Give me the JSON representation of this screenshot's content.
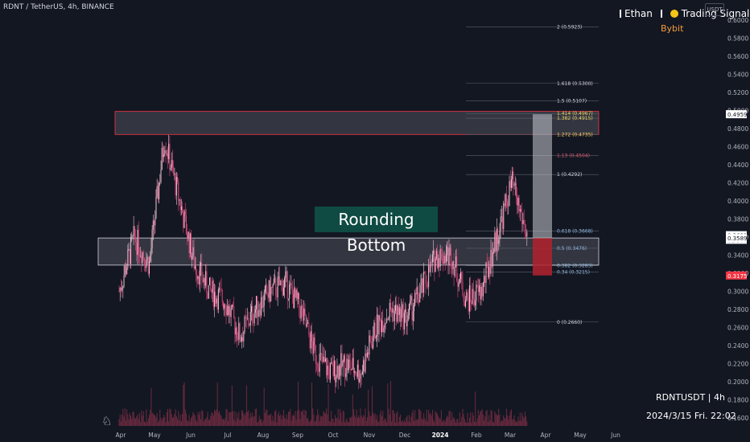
{
  "header": {
    "symbol_line": "RDNT / TetherUS, 4h, BINANCE",
    "brand_left": "Ethan",
    "brand_right": "Trading Signals",
    "exchange": "Bybit",
    "scale_button": "USDT"
  },
  "watermark": {
    "symbol": "RDNTUSDT | 4h",
    "datetime": "2024/3/15 Fri. 22:02"
  },
  "colors": {
    "background": "#131722",
    "candle_up": "#f0c4d4",
    "candle_down": "#e0457b",
    "volume": "#6b2a3f",
    "zone_border_red": "#f23645",
    "zone_border_white": "#d1d4dc",
    "target_box": "#c7c9cf",
    "stop_box": "#b2222e",
    "label_bg": "#0f4b43",
    "current_price": "#ffffff",
    "stop_price": "#f23645"
  },
  "chart_data": {
    "type": "candlestick",
    "title": "RDNT / TetherUS, 4h, BINANCE",
    "pattern_label": "Rounding Bottom",
    "x_axis": {
      "ticks": [
        "Apr",
        "May",
        "Jun",
        "Jul",
        "Aug",
        "Sep",
        "Oct",
        "Nov",
        "Dec",
        "2024",
        "Feb",
        "Mar",
        "Apr",
        "May",
        "Jun"
      ]
    },
    "y_axis": {
      "unit": "USDT",
      "range": [
        0.15,
        0.61
      ],
      "ticks": [
        "0.6000",
        "0.5800",
        "0.5600",
        "0.5400",
        "0.5200",
        "0.5000",
        "0.4800",
        "0.4600",
        "0.4400",
        "0.4200",
        "0.4000",
        "0.3800",
        "0.3600",
        "0.3400",
        "0.3200",
        "0.3000",
        "0.2800",
        "0.2600",
        "0.2400",
        "0.2200",
        "0.2000",
        "0.1800",
        "0.1600"
      ]
    },
    "price_path": [
      {
        "month": "Apr",
        "price": 0.3
      },
      {
        "month": "Apr",
        "price": 0.36
      },
      {
        "month": "Apr",
        "price": 0.33
      },
      {
        "month": "Apr",
        "price": 0.47
      },
      {
        "month": "May",
        "price": 0.4
      },
      {
        "month": "May",
        "price": 0.33
      },
      {
        "month": "May",
        "price": 0.3
      },
      {
        "month": "Jun",
        "price": 0.29
      },
      {
        "month": "Jun",
        "price": 0.25
      },
      {
        "month": "Jul",
        "price": 0.28
      },
      {
        "month": "Jul",
        "price": 0.3
      },
      {
        "month": "Aug",
        "price": 0.31
      },
      {
        "month": "Aug",
        "price": 0.28
      },
      {
        "month": "Sep",
        "price": 0.23
      },
      {
        "month": "Sep",
        "price": 0.21
      },
      {
        "month": "Oct",
        "price": 0.22
      },
      {
        "month": "Oct",
        "price": 0.21
      },
      {
        "month": "Nov",
        "price": 0.26
      },
      {
        "month": "Nov",
        "price": 0.28
      },
      {
        "month": "Dec",
        "price": 0.27
      },
      {
        "month": "Dec",
        "price": 0.3
      },
      {
        "month": "2024",
        "price": 0.34
      },
      {
        "month": "2024",
        "price": 0.34
      },
      {
        "month": "Feb",
        "price": 0.29
      },
      {
        "month": "Feb",
        "price": 0.3
      },
      {
        "month": "Mar",
        "price": 0.36
      },
      {
        "month": "Mar",
        "price": 0.42
      },
      {
        "month": "Mar",
        "price": 0.362
      }
    ],
    "fib_levels": [
      {
        "label": "2 (0.5923)",
        "value": 0.5923
      },
      {
        "label": "1.618 (0.5300)",
        "value": 0.53
      },
      {
        "label": "1.5 (0.5107)",
        "value": 0.5107
      },
      {
        "label": "1.414 (0.4967)",
        "value": 0.4967
      },
      {
        "label": "1.382 (0.4915)",
        "value": 0.4915
      },
      {
        "label": "1.272 (0.4735)",
        "value": 0.4735
      },
      {
        "label": "1.13 (0.4504)",
        "value": 0.4504
      },
      {
        "label": "1 (0.4292)",
        "value": 0.4292
      },
      {
        "label": "0.618 (0.3668)",
        "value": 0.3668
      },
      {
        "label": "0.5 (0.3476)",
        "value": 0.3476
      },
      {
        "label": "0.382 (0.3283)",
        "value": 0.3283
      },
      {
        "label": "0.34 (0.3215)",
        "value": 0.3215
      },
      {
        "label": "0 (0.2660)",
        "value": 0.266
      }
    ],
    "zones": [
      {
        "name": "resistance",
        "low": 0.4735,
        "high": 0.499
      },
      {
        "name": "support",
        "low": 0.329,
        "high": 0.359
      }
    ],
    "position": {
      "target": 0.4959,
      "entry": 0.3589,
      "stop": 0.3175
    },
    "price_labels": [
      {
        "text": "0.4959",
        "value": 0.4959,
        "style": "target"
      },
      {
        "text": "0.3621",
        "value": 0.3621,
        "style": "current"
      },
      {
        "text": "01:57:18",
        "value": 0.357,
        "style": "countdown"
      },
      {
        "text": "0.3589",
        "value": 0.3589,
        "style": "entry"
      },
      {
        "text": "0.3175",
        "value": 0.3175,
        "style": "stop"
      }
    ]
  }
}
